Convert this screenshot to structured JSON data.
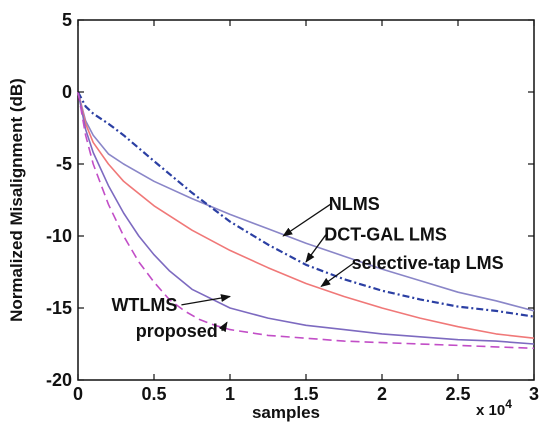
{
  "chart_data": {
    "type": "line",
    "title": "",
    "xlabel": "samples",
    "ylabel": "Normalized Misalignment (dB)",
    "x_exponent_label": "x 10",
    "x_exponent_power": "4",
    "xlim": [
      0,
      3
    ],
    "ylim": [
      -20,
      5
    ],
    "xticks": [
      0,
      0.5,
      1,
      1.5,
      2,
      2.5,
      3
    ],
    "xtick_labels": [
      "0",
      "0.5",
      "1",
      "1.5",
      "2",
      "2.5",
      "3"
    ],
    "yticks": [
      -20,
      -15,
      -10,
      -5,
      0,
      5
    ],
    "ytick_labels": [
      "-20",
      "-15",
      "-10",
      "-5",
      "0",
      "5"
    ],
    "grid": false,
    "legend": "none",
    "series": [
      {
        "name": "NLMS",
        "color": "#8a86c8",
        "style": "solid",
        "x": [
          0,
          0.05,
          0.1,
          0.2,
          0.3,
          0.5,
          0.75,
          1.0,
          1.25,
          1.5,
          1.75,
          2.0,
          2.25,
          2.5,
          2.75,
          3.0
        ],
        "y": [
          0,
          -2.0,
          -3.0,
          -4.3,
          -5.0,
          -6.2,
          -7.4,
          -8.5,
          -9.5,
          -10.5,
          -11.4,
          -12.3,
          -13.1,
          -13.9,
          -14.5,
          -15.2
        ]
      },
      {
        "name": "DCT-GAL LMS",
        "color": "#2b3fa3",
        "style": "dashdot",
        "x": [
          0,
          0.05,
          0.1,
          0.2,
          0.3,
          0.5,
          0.75,
          1.0,
          1.25,
          1.5,
          1.75,
          2.0,
          2.25,
          2.5,
          2.75,
          3.0
        ],
        "y": [
          0,
          -1.0,
          -1.5,
          -2.2,
          -3.0,
          -4.8,
          -7.0,
          -9.0,
          -10.6,
          -12.0,
          -13.0,
          -13.8,
          -14.4,
          -14.9,
          -15.2,
          -15.6
        ]
      },
      {
        "name": "selective-tap LMS",
        "color": "#f07878",
        "style": "solid",
        "x": [
          0,
          0.05,
          0.1,
          0.2,
          0.3,
          0.5,
          0.75,
          1.0,
          1.25,
          1.5,
          1.75,
          2.0,
          2.25,
          2.5,
          2.75,
          3.0
        ],
        "y": [
          0,
          -2.2,
          -3.5,
          -5.0,
          -6.2,
          -7.9,
          -9.6,
          -11.0,
          -12.2,
          -13.3,
          -14.2,
          -15.0,
          -15.7,
          -16.3,
          -16.8,
          -17.1
        ]
      },
      {
        "name": "WTLMS",
        "color": "#7d6ac0",
        "style": "solid",
        "x": [
          0,
          0.05,
          0.1,
          0.2,
          0.3,
          0.4,
          0.5,
          0.6,
          0.75,
          1.0,
          1.25,
          1.5,
          1.75,
          2.0,
          2.25,
          2.5,
          2.75,
          3.0
        ],
        "y": [
          0,
          -2.6,
          -4.2,
          -6.5,
          -8.4,
          -10.0,
          -11.3,
          -12.4,
          -13.7,
          -15.0,
          -15.7,
          -16.2,
          -16.5,
          -16.8,
          -17.0,
          -17.2,
          -17.3,
          -17.5
        ]
      },
      {
        "name": "proposed",
        "color": "#c24ec7",
        "style": "dashed",
        "x": [
          0,
          0.05,
          0.1,
          0.2,
          0.3,
          0.4,
          0.5,
          0.6,
          0.7,
          0.8,
          0.9,
          1.0,
          1.25,
          1.5,
          1.75,
          2.0,
          2.25,
          2.5,
          2.75,
          3.0
        ],
        "y": [
          0,
          -3.0,
          -5.0,
          -7.8,
          -10.0,
          -11.8,
          -13.2,
          -14.4,
          -15.2,
          -15.8,
          -16.2,
          -16.5,
          -16.9,
          -17.1,
          -17.3,
          -17.4,
          -17.5,
          -17.6,
          -17.7,
          -17.8
        ]
      }
    ],
    "annotations": [
      {
        "text": "NLMS",
        "x": 1.65,
        "y": -8.2,
        "arrow_to": [
          1.35,
          -10.0
        ]
      },
      {
        "text": "DCT-GAL LMS",
        "x": 1.62,
        "y": -10.3,
        "arrow_to": [
          1.5,
          -11.8
        ]
      },
      {
        "text": "selective-tap LMS",
        "x": 1.8,
        "y": -12.3,
        "arrow_to": [
          1.6,
          -13.5
        ]
      },
      {
        "text": "WTLMS",
        "x": 0.22,
        "y": -15.2,
        "arrow_to": [
          1.0,
          -14.2
        ]
      },
      {
        "text": "proposed",
        "x": 0.38,
        "y": -17.0,
        "arrow_to": [
          0.98,
          -16.0
        ]
      }
    ]
  }
}
